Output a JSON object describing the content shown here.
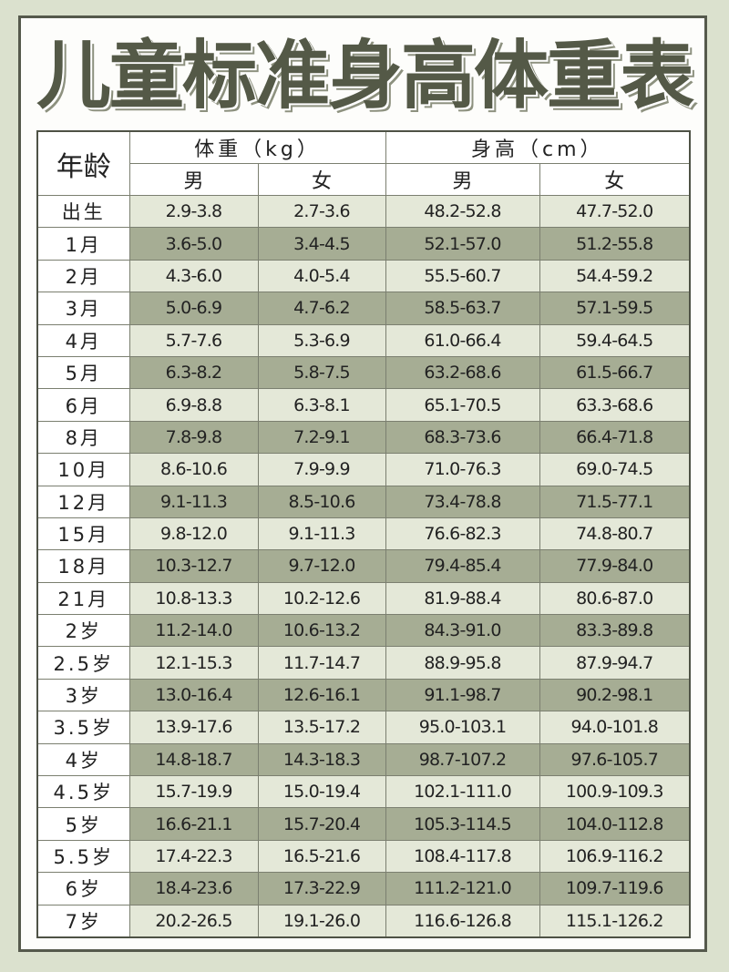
{
  "title": "儿童标准身高体重表",
  "header": {
    "age": "年龄",
    "weight": "体重（kg）",
    "height": "身高（cm）",
    "male": "男",
    "female": "女"
  },
  "colors": {
    "light_row": "#e4e8d8",
    "dark_row": "#a6ad94",
    "title": "#545947",
    "background": "#dbe1ce"
  },
  "rows": [
    {
      "age": "出生",
      "wm": "2.9-3.8",
      "wf": "2.7-3.6",
      "hm": "48.2-52.8",
      "hf": "47.7-52.0"
    },
    {
      "age": "1月",
      "wm": "3.6-5.0",
      "wf": "3.4-4.5",
      "hm": "52.1-57.0",
      "hf": "51.2-55.8"
    },
    {
      "age": "2月",
      "wm": "4.3-6.0",
      "wf": "4.0-5.4",
      "hm": "55.5-60.7",
      "hf": "54.4-59.2"
    },
    {
      "age": "3月",
      "wm": "5.0-6.9",
      "wf": "4.7-6.2",
      "hm": "58.5-63.7",
      "hf": "57.1-59.5"
    },
    {
      "age": "4月",
      "wm": "5.7-7.6",
      "wf": "5.3-6.9",
      "hm": "61.0-66.4",
      "hf": "59.4-64.5"
    },
    {
      "age": "5月",
      "wm": "6.3-8.2",
      "wf": "5.8-7.5",
      "hm": "63.2-68.6",
      "hf": "61.5-66.7"
    },
    {
      "age": "6月",
      "wm": "6.9-8.8",
      "wf": "6.3-8.1",
      "hm": "65.1-70.5",
      "hf": "63.3-68.6"
    },
    {
      "age": "8月",
      "wm": "7.8-9.8",
      "wf": "7.2-9.1",
      "hm": "68.3-73.6",
      "hf": "66.4-71.8"
    },
    {
      "age": "10月",
      "wm": "8.6-10.6",
      "wf": "7.9-9.9",
      "hm": "71.0-76.3",
      "hf": "69.0-74.5"
    },
    {
      "age": "12月",
      "wm": "9.1-11.3",
      "wf": "8.5-10.6",
      "hm": "73.4-78.8",
      "hf": "71.5-77.1"
    },
    {
      "age": "15月",
      "wm": "9.8-12.0",
      "wf": "9.1-11.3",
      "hm": "76.6-82.3",
      "hf": "74.8-80.7"
    },
    {
      "age": "18月",
      "wm": "10.3-12.7",
      "wf": "9.7-12.0",
      "hm": "79.4-85.4",
      "hf": "77.9-84.0"
    },
    {
      "age": "21月",
      "wm": "10.8-13.3",
      "wf": "10.2-12.6",
      "hm": "81.9-88.4",
      "hf": "80.6-87.0"
    },
    {
      "age": "2岁",
      "wm": "11.2-14.0",
      "wf": "10.6-13.2",
      "hm": "84.3-91.0",
      "hf": "83.3-89.8"
    },
    {
      "age": "2.5岁",
      "wm": "12.1-15.3",
      "wf": "11.7-14.7",
      "hm": "88.9-95.8",
      "hf": "87.9-94.7"
    },
    {
      "age": "3岁",
      "wm": "13.0-16.4",
      "wf": "12.6-16.1",
      "hm": "91.1-98.7",
      "hf": "90.2-98.1"
    },
    {
      "age": "3.5岁",
      "wm": "13.9-17.6",
      "wf": "13.5-17.2",
      "hm": "95.0-103.1",
      "hf": "94.0-101.8"
    },
    {
      "age": "4岁",
      "wm": "14.8-18.7",
      "wf": "14.3-18.3",
      "hm": "98.7-107.2",
      "hf": "97.6-105.7"
    },
    {
      "age": "4.5岁",
      "wm": "15.7-19.9",
      "wf": "15.0-19.4",
      "hm": "102.1-111.0",
      "hf": "100.9-109.3"
    },
    {
      "age": "5岁",
      "wm": "16.6-21.1",
      "wf": "15.7-20.4",
      "hm": "105.3-114.5",
      "hf": "104.0-112.8"
    },
    {
      "age": "5.5岁",
      "wm": "17.4-22.3",
      "wf": "16.5-21.6",
      "hm": "108.4-117.8",
      "hf": "106.9-116.2"
    },
    {
      "age": "6岁",
      "wm": "18.4-23.6",
      "wf": "17.3-22.9",
      "hm": "111.2-121.0",
      "hf": "109.7-119.6"
    },
    {
      "age": "7岁",
      "wm": "20.2-26.5",
      "wf": "19.1-26.0",
      "hm": "116.6-126.8",
      "hf": "115.1-126.2"
    }
  ]
}
